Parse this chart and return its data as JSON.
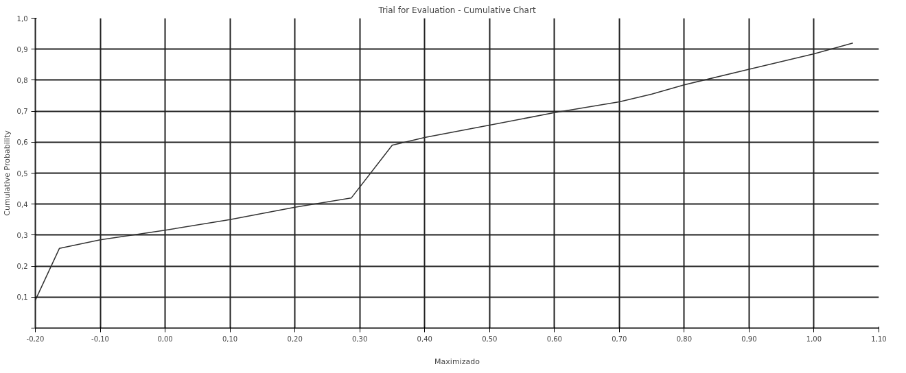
{
  "chart_data": {
    "type": "line",
    "title": "Trial for Evaluation - Cumulative Chart",
    "xlabel": "Maximizado",
    "ylabel": "Cumulative Probability",
    "x": [
      -0.2,
      -0.163,
      -0.1,
      0.0,
      0.1,
      0.2,
      0.287,
      0.35,
      0.4,
      0.5,
      0.6,
      0.7,
      0.75,
      0.8,
      0.9,
      1.0,
      1.06
    ],
    "series": [
      {
        "color": "#333333",
        "values": [
          0.09,
          0.257,
          0.285,
          0.316,
          0.35,
          0.39,
          0.42,
          0.59,
          0.615,
          0.655,
          0.695,
          0.73,
          0.755,
          0.785,
          0.835,
          0.885,
          0.92
        ]
      }
    ],
    "xlim": [
      -0.2,
      1.1
    ],
    "ylim": [
      0,
      1.0
    ],
    "xticks": [
      {
        "value": -0.2,
        "label": "-0,20"
      },
      {
        "value": -0.1,
        "label": "-0,10"
      },
      {
        "value": 0.0,
        "label": "0,00"
      },
      {
        "value": 0.1,
        "label": "0,10"
      },
      {
        "value": 0.2,
        "label": "0,20"
      },
      {
        "value": 0.3,
        "label": "0,30"
      },
      {
        "value": 0.4,
        "label": "0,40"
      },
      {
        "value": 0.5,
        "label": "0,50"
      },
      {
        "value": 0.6,
        "label": "0,60"
      },
      {
        "value": 0.7,
        "label": "0,70"
      },
      {
        "value": 0.8,
        "label": "0,80"
      },
      {
        "value": 0.9,
        "label": "0,90"
      },
      {
        "value": 1.0,
        "label": "1,00"
      },
      {
        "value": 1.1,
        "label": "1,10"
      }
    ],
    "yticks": [
      {
        "value": 0,
        "label": null
      },
      {
        "value": 0.1,
        "label": "0,1"
      },
      {
        "value": 0.2,
        "label": "0,2"
      },
      {
        "value": 0.3,
        "label": "0,3"
      },
      {
        "value": 0.4,
        "label": "0,4"
      },
      {
        "value": 0.5,
        "label": "0,5"
      },
      {
        "value": 0.6,
        "label": "0,6"
      },
      {
        "value": 0.7,
        "label": "0,7"
      },
      {
        "value": 0.8,
        "label": "0,8"
      },
      {
        "value": 0.9,
        "label": "0,9"
      },
      {
        "value": 1.0,
        "label": "1,0"
      }
    ],
    "grid": true,
    "marker": "none",
    "line_style": "solid"
  }
}
